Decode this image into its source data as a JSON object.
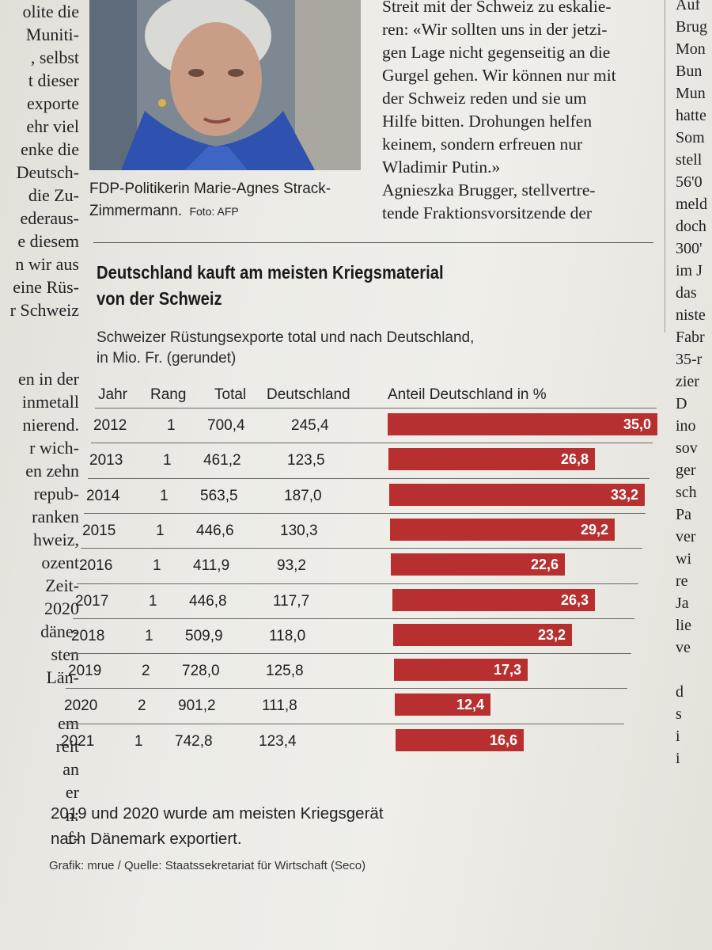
{
  "left_column": {
    "lines": [
      "olite die",
      "Muniti-",
      ", selbst",
      "t dieser",
      "exporte",
      "ehr viel",
      "enke die",
      "Deutsch-",
      "die Zu-",
      "ederaus-",
      "e diesem",
      "n wir aus",
      "eine Rüs-",
      "r Schweiz",
      "",
      "",
      "en in der",
      "inmetall",
      "nierend.",
      "r wich-",
      "en zehn",
      "repub-",
      "ranken",
      "hweiz,",
      "ozent",
      "Zeit-",
      "2020",
      "däne-",
      "sten",
      "Län-",
      "",
      "em",
      "reit",
      "an",
      "er",
      "n:",
      "f-"
    ]
  },
  "right_column": {
    "lines": [
      "Auf",
      "Brug",
      "Mon",
      "Bun",
      "Mun",
      "hatte",
      "Som",
      "stell",
      "56'0",
      "meld",
      "doch",
      "300'",
      "im J",
      "das",
      "niste",
      "Fabr",
      "35-r",
      "zier",
      "D",
      "ino",
      "sov",
      "ger",
      "sch",
      "Pa",
      "ver",
      "wi",
      "re",
      "Ja",
      "lie",
      "ve",
      "",
      "d",
      "s",
      "i",
      "i"
    ]
  },
  "photo": {
    "caption": "FDP-Politikerin Marie-Agnes Strack-Zimmermann.",
    "credit": "Foto: AFP"
  },
  "quote": {
    "lines": [
      "Streit mit der Schweiz zu eskalie-",
      "ren: «Wir sollten uns in der jetzi-",
      "gen Lage nicht gegenseitig an die",
      "Gurgel gehen. Wir können nur mit",
      "der Schweiz reden und sie um",
      "Hilfe bitten. Drohungen helfen",
      "keinem, sondern erfreuen nur",
      "Wladimir Putin.»",
      "Agnieszka Brugger, stellvertre-",
      "tende Fraktionsvorsitzende der"
    ]
  },
  "chart": {
    "title_line1": "Deutschland kauft am meisten Kriegsmaterial",
    "title_line2": "von der Schweiz",
    "subtitle_line1": "Schweizer Rüstungsexporte total und nach Deutschland,",
    "subtitle_line2": "in Mio. Fr. (gerundet)",
    "headers": {
      "year": "Jahr",
      "rank": "Rang",
      "total": "Total",
      "germany": "Deutschland",
      "share": "Anteil Deutschland in %"
    },
    "rows": [
      {
        "year": "2012",
        "rank": "1",
        "total": "700,4",
        "germany": "245,4",
        "share_label": "35,0",
        "share": 35.0
      },
      {
        "year": "2013",
        "rank": "1",
        "total": "461,2",
        "germany": "123,5",
        "share_label": "26,8",
        "share": 26.8
      },
      {
        "year": "2014",
        "rank": "1",
        "total": "563,5",
        "germany": "187,0",
        "share_label": "33,2",
        "share": 33.2
      },
      {
        "year": "2015",
        "rank": "1",
        "total": "446,6",
        "germany": "130,3",
        "share_label": "29,2",
        "share": 29.2
      },
      {
        "year": "2016",
        "rank": "1",
        "total": "411,9",
        "germany": "93,2",
        "share_label": "22,6",
        "share": 22.6
      },
      {
        "year": "2017",
        "rank": "1",
        "total": "446,8",
        "germany": "117,7",
        "share_label": "26,3",
        "share": 26.3
      },
      {
        "year": "2018",
        "rank": "1",
        "total": "509,9",
        "germany": "118,0",
        "share_label": "23,2",
        "share": 23.2
      },
      {
        "year": "2019",
        "rank": "2",
        "total": "728,0",
        "germany": "125,8",
        "share_label": "17,3",
        "share": 17.3
      },
      {
        "year": "2020",
        "rank": "2",
        "total": "901,2",
        "germany": "111,8",
        "share_label": "12,4",
        "share": 12.4
      },
      {
        "year": "2021",
        "rank": "1",
        "total": "742,8",
        "germany": "123,4",
        "share_label": "16,6",
        "share": 16.6
      }
    ],
    "note_line1": "2019 und 2020 wurde am meisten Kriegsgerät",
    "note_line2": "nach Dänemark exportiert.",
    "source": "Grafik: mrue / Quelle: Staatssekretariat für Wirtschaft (Seco)",
    "bar_color": "#b7302f"
  }
}
